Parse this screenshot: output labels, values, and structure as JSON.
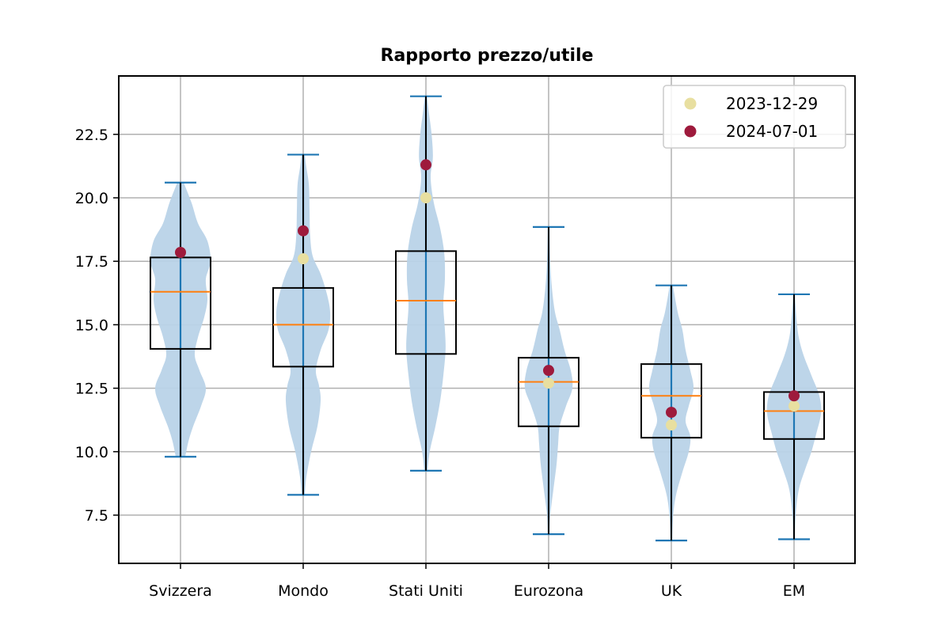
{
  "chart_data": {
    "type": "violin",
    "title": "Rapporto prezzo/utile",
    "xlabel": "",
    "ylabel": "",
    "ylim": [
      5.6,
      24.8
    ],
    "yticks": [
      7.5,
      10.0,
      12.5,
      15.0,
      17.5,
      20.0,
      22.5
    ],
    "ytick_labels": [
      "7.5",
      "10.0",
      "12.5",
      "15.0",
      "17.5",
      "20.0",
      "22.5"
    ],
    "categories": [
      "Svizzera",
      "Mondo",
      "Stati Uniti",
      "Eurozona",
      "UK",
      "EM"
    ],
    "grid": true,
    "legend": {
      "placement": "top-right",
      "entries": [
        {
          "label": "2023-12-29",
          "color": "#e8dfa0"
        },
        {
          "label": "2024-07-01",
          "color": "#9e1a3c"
        }
      ]
    },
    "colors": {
      "violin_fill": "#b9d3e8",
      "violin_line": "#1f77b4",
      "median": "#ff7f0e",
      "box": "#000000"
    },
    "distributions": [
      {
        "category": "Svizzera",
        "min": 9.8,
        "max": 20.6,
        "box": {
          "q1": 14.05,
          "median": 16.3,
          "q3": 17.65,
          "whisker_low": 9.8,
          "whisker_high": 20.6
        },
        "points": {
          "2023-12-29": 17.85,
          "2024-07-01": 17.85
        },
        "density": [
          [
            9.8,
            0.15
          ],
          [
            10.4,
            0.25
          ],
          [
            11.0,
            0.4
          ],
          [
            11.8,
            0.65
          ],
          [
            12.5,
            0.8
          ],
          [
            13.2,
            0.6
          ],
          [
            13.8,
            0.45
          ],
          [
            14.5,
            0.55
          ],
          [
            15.3,
            0.75
          ],
          [
            16.0,
            0.85
          ],
          [
            16.8,
            0.8
          ],
          [
            17.5,
            0.95
          ],
          [
            18.3,
            0.85
          ],
          [
            19.0,
            0.55
          ],
          [
            19.8,
            0.35
          ],
          [
            20.6,
            0.1
          ]
        ]
      },
      {
        "category": "Mondo",
        "min": 8.3,
        "max": 21.7,
        "box": {
          "q1": 13.35,
          "median": 15.0,
          "q3": 16.45,
          "whisker_low": 8.3,
          "whisker_high": 21.7
        },
        "points": {
          "2023-12-29": 17.6,
          "2024-07-01": 18.7
        },
        "density": [
          [
            8.3,
            0.05
          ],
          [
            9.0,
            0.1
          ],
          [
            10.0,
            0.25
          ],
          [
            11.0,
            0.45
          ],
          [
            12.0,
            0.55
          ],
          [
            12.6,
            0.5
          ],
          [
            13.2,
            0.4
          ],
          [
            14.0,
            0.55
          ],
          [
            14.8,
            0.8
          ],
          [
            15.5,
            0.85
          ],
          [
            16.2,
            0.75
          ],
          [
            17.0,
            0.55
          ],
          [
            17.7,
            0.3
          ],
          [
            18.5,
            0.22
          ],
          [
            19.5,
            0.2
          ],
          [
            20.5,
            0.18
          ],
          [
            21.2,
            0.1
          ],
          [
            21.7,
            0.05
          ]
        ]
      },
      {
        "category": "Stati Uniti",
        "min": 9.25,
        "max": 24.0,
        "box": {
          "q1": 13.85,
          "median": 15.95,
          "q3": 17.9,
          "whisker_low": 9.25,
          "whisker_high": 24.0
        },
        "points": {
          "2023-12-29": 20.0,
          "2024-07-01": 21.3
        },
        "density": [
          [
            9.25,
            0.05
          ],
          [
            10.0,
            0.12
          ],
          [
            11.0,
            0.3
          ],
          [
            12.0,
            0.45
          ],
          [
            13.0,
            0.55
          ],
          [
            14.0,
            0.62
          ],
          [
            14.8,
            0.6
          ],
          [
            15.8,
            0.55
          ],
          [
            16.8,
            0.6
          ],
          [
            17.8,
            0.58
          ],
          [
            18.8,
            0.45
          ],
          [
            19.8,
            0.25
          ],
          [
            20.8,
            0.15
          ],
          [
            21.6,
            0.22
          ],
          [
            22.5,
            0.18
          ],
          [
            23.3,
            0.1
          ],
          [
            24.0,
            0.03
          ]
        ]
      },
      {
        "category": "Eurozona",
        "min": 6.75,
        "max": 18.85,
        "box": {
          "q1": 11.0,
          "median": 12.75,
          "q3": 13.7,
          "whisker_low": 6.75,
          "whisker_high": 18.85
        },
        "points": {
          "2023-12-29": 12.7,
          "2024-07-01": 13.2
        },
        "density": [
          [
            6.75,
            0.02
          ],
          [
            7.5,
            0.05
          ],
          [
            8.5,
            0.15
          ],
          [
            9.5,
            0.25
          ],
          [
            10.3,
            0.3
          ],
          [
            11.0,
            0.35
          ],
          [
            11.8,
            0.55
          ],
          [
            12.5,
            0.75
          ],
          [
            13.2,
            0.7
          ],
          [
            14.0,
            0.5
          ],
          [
            14.8,
            0.35
          ],
          [
            15.5,
            0.2
          ],
          [
            16.5,
            0.1
          ],
          [
            17.5,
            0.05
          ],
          [
            18.85,
            0.02
          ]
        ]
      },
      {
        "category": "UK",
        "min": 6.5,
        "max": 16.55,
        "box": {
          "q1": 10.55,
          "median": 12.2,
          "q3": 13.45,
          "whisker_low": 6.5,
          "whisker_high": 16.55
        },
        "points": {
          "2023-12-29": 11.05,
          "2024-07-01": 11.55
        },
        "density": [
          [
            6.5,
            0.02
          ],
          [
            7.5,
            0.06
          ],
          [
            8.3,
            0.15
          ],
          [
            9.2,
            0.35
          ],
          [
            10.0,
            0.55
          ],
          [
            10.6,
            0.6
          ],
          [
            11.2,
            0.45
          ],
          [
            11.8,
            0.55
          ],
          [
            12.5,
            0.7
          ],
          [
            13.2,
            0.6
          ],
          [
            14.0,
            0.45
          ],
          [
            14.8,
            0.35
          ],
          [
            15.5,
            0.2
          ],
          [
            16.55,
            0.05
          ]
        ]
      },
      {
        "category": "EM",
        "min": 6.55,
        "max": 16.2,
        "box": {
          "q1": 10.5,
          "median": 11.6,
          "q3": 12.35,
          "whisker_low": 6.55,
          "whisker_high": 16.2
        },
        "points": {
          "2023-12-29": 11.8,
          "2024-07-01": 12.2
        },
        "density": [
          [
            6.55,
            0.02
          ],
          [
            7.5,
            0.05
          ],
          [
            8.5,
            0.15
          ],
          [
            9.3,
            0.35
          ],
          [
            10.0,
            0.55
          ],
          [
            10.7,
            0.7
          ],
          [
            11.5,
            0.85
          ],
          [
            12.2,
            0.8
          ],
          [
            13.0,
            0.55
          ],
          [
            13.8,
            0.3
          ],
          [
            14.5,
            0.15
          ],
          [
            15.2,
            0.08
          ],
          [
            16.2,
            0.02
          ]
        ]
      }
    ]
  }
}
